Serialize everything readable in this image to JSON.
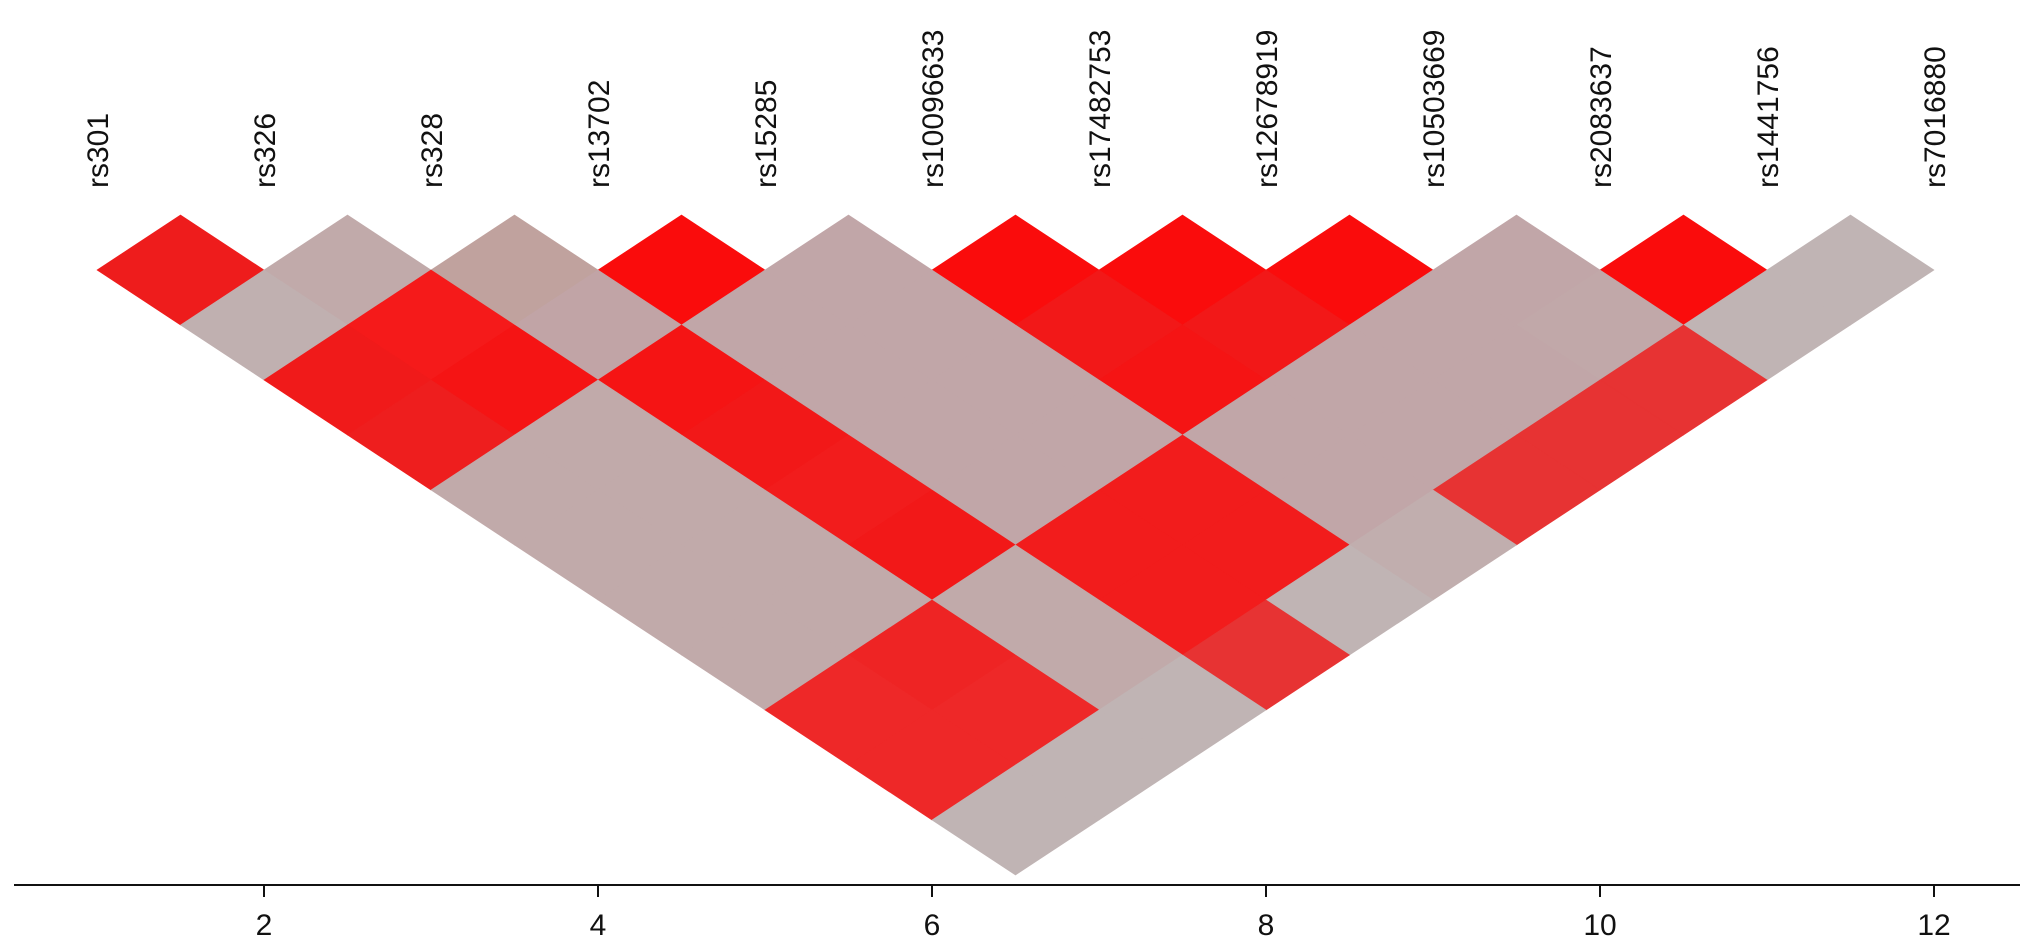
{
  "chart_data": {
    "type": "heatmap",
    "title": "",
    "xlabel": "",
    "ylabel": "",
    "markers": [
      "rs301",
      "rs326",
      "rs328",
      "rs13702",
      "rs15285",
      "rs10096633",
      "rs17482753",
      "rs12678919",
      "rs10503669",
      "rs2083637",
      "rs1441756",
      "rs7016880"
    ],
    "marker_positions": [
      1,
      2,
      3,
      4,
      5,
      6,
      7,
      8,
      9,
      10,
      11,
      12
    ],
    "xlim": [
      0.5,
      12.5
    ],
    "x_ticks": [
      2,
      4,
      6,
      8,
      10,
      12
    ],
    "x_tick_labels": [
      "2",
      "4",
      "6",
      "8",
      "10",
      "12"
    ],
    "grid": false,
    "legend": "none",
    "colors": {
      "strong": "#fa0c0c",
      "medium": "#e73333",
      "weak": "#c0b1b1"
    },
    "ld_cells": [
      {
        "i": 1,
        "j": 2,
        "color": "#ee1c1c"
      },
      {
        "i": 2,
        "j": 3,
        "color": "#c1aaaa"
      },
      {
        "i": 3,
        "j": 4,
        "color": "#c0a29e"
      },
      {
        "i": 4,
        "j": 5,
        "color": "#fa0c0c"
      },
      {
        "i": 5,
        "j": 6,
        "color": "#c1a6a8"
      },
      {
        "i": 6,
        "j": 7,
        "color": "#fa0c0c"
      },
      {
        "i": 7,
        "j": 8,
        "color": "#fa0c0c"
      },
      {
        "i": 8,
        "j": 9,
        "color": "#fa0c0c"
      },
      {
        "i": 9,
        "j": 10,
        "color": "#c1a6a8"
      },
      {
        "i": 10,
        "j": 11,
        "color": "#fa0c0c"
      },
      {
        "i": 11,
        "j": 12,
        "color": "#c0b4b4"
      },
      {
        "i": 1,
        "j": 3,
        "color": "#c0b0b0"
      },
      {
        "i": 2,
        "j": 4,
        "color": "#f51a1a"
      },
      {
        "i": 3,
        "j": 5,
        "color": "#c1a4a6"
      },
      {
        "i": 4,
        "j": 6,
        "color": "#c1a6a8"
      },
      {
        "i": 5,
        "j": 7,
        "color": "#c1a6a8"
      },
      {
        "i": 6,
        "j": 8,
        "color": "#f21818"
      },
      {
        "i": 7,
        "j": 9,
        "color": "#f21818"
      },
      {
        "i": 8,
        "j": 10,
        "color": "#c1a6a8"
      },
      {
        "i": 9,
        "j": 11,
        "color": "#c1a8a9"
      },
      {
        "i": 10,
        "j": 12,
        "color": "#c0b4b4"
      },
      {
        "i": 1,
        "j": 4,
        "color": "#f01a1a"
      },
      {
        "i": 2,
        "j": 5,
        "color": "#f51414"
      },
      {
        "i": 3,
        "j": 6,
        "color": "#f51414"
      },
      {
        "i": 4,
        "j": 7,
        "color": "#c1a6a8"
      },
      {
        "i": 5,
        "j": 8,
        "color": "#c1a6a8"
      },
      {
        "i": 6,
        "j": 9,
        "color": "#f51414"
      },
      {
        "i": 7,
        "j": 10,
        "color": "#c1a6a8"
      },
      {
        "i": 8,
        "j": 11,
        "color": "#c1a6a8"
      },
      {
        "i": 9,
        "j": 12,
        "color": "#e73333"
      },
      {
        "i": 1,
        "j": 5,
        "color": "#ee1e1e"
      },
      {
        "i": 2,
        "j": 6,
        "color": "#c1aaaa"
      },
      {
        "i": 3,
        "j": 7,
        "color": "#f21818"
      },
      {
        "i": 4,
        "j": 8,
        "color": "#c1a6a8"
      },
      {
        "i": 5,
        "j": 9,
        "color": "#c1a6a8"
      },
      {
        "i": 6,
        "j": 10,
        "color": "#c1a6a8"
      },
      {
        "i": 7,
        "j": 11,
        "color": "#c1a6a8"
      },
      {
        "i": 8,
        "j": 12,
        "color": "#e73333"
      },
      {
        "i": 1,
        "j": 6,
        "color": "#c1aaaa"
      },
      {
        "i": 2,
        "j": 7,
        "color": "#c1aaaa"
      },
      {
        "i": 3,
        "j": 8,
        "color": "#f21c1c"
      },
      {
        "i": 4,
        "j": 9,
        "color": "#c1a6a8"
      },
      {
        "i": 5,
        "j": 10,
        "color": "#f21c1c"
      },
      {
        "i": 6,
        "j": 11,
        "color": "#c1a6a8"
      },
      {
        "i": 7,
        "j": 12,
        "color": "#e73333"
      },
      {
        "i": 1,
        "j": 7,
        "color": "#c1aaaa"
      },
      {
        "i": 2,
        "j": 8,
        "color": "#c1aaaa"
      },
      {
        "i": 3,
        "j": 9,
        "color": "#f21818"
      },
      {
        "i": 4,
        "j": 10,
        "color": "#f21c1c"
      },
      {
        "i": 5,
        "j": 11,
        "color": "#f21c1c"
      },
      {
        "i": 6,
        "j": 12,
        "color": "#c1aeae"
      },
      {
        "i": 1,
        "j": 8,
        "color": "#c1aaaa"
      },
      {
        "i": 2,
        "j": 9,
        "color": "#c1aaaa"
      },
      {
        "i": 3,
        "j": 10,
        "color": "#c1aaaa"
      },
      {
        "i": 4,
        "j": 11,
        "color": "#f21c1c"
      },
      {
        "i": 5,
        "j": 12,
        "color": "#c0b4b4"
      },
      {
        "i": 1,
        "j": 9,
        "color": "#c1aaaa"
      },
      {
        "i": 2,
        "j": 10,
        "color": "#ee2424"
      },
      {
        "i": 3,
        "j": 11,
        "color": "#c1aaaa"
      },
      {
        "i": 4,
        "j": 12,
        "color": "#e73333"
      },
      {
        "i": 1,
        "j": 10,
        "color": "#ee2828"
      },
      {
        "i": 2,
        "j": 11,
        "color": "#ee2828"
      },
      {
        "i": 3,
        "j": 12,
        "color": "#c0b4b4"
      },
      {
        "i": 1,
        "j": 11,
        "color": "#ee2828"
      },
      {
        "i": 2,
        "j": 12,
        "color": "#c0b4b4"
      },
      {
        "i": 1,
        "j": 12,
        "color": "#c0b4b4"
      }
    ]
  }
}
